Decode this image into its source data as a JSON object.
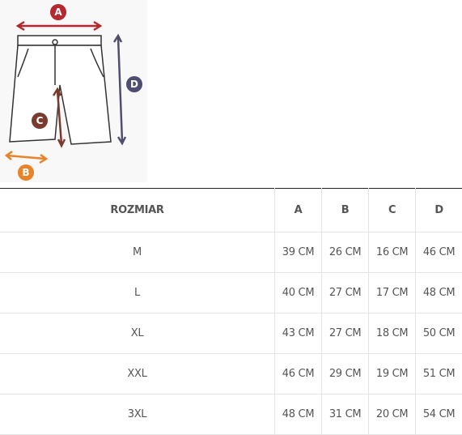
{
  "diagram": {
    "labels": {
      "a": "A",
      "b": "B",
      "c": "C",
      "d": "D"
    }
  },
  "table": {
    "header": [
      "ROZMIAR",
      "A",
      "B",
      "C",
      "D"
    ],
    "rows": [
      [
        "M",
        "39 CM",
        "26 CM",
        "16 CM",
        "46 CM"
      ],
      [
        "L",
        "40 CM",
        "27 CM",
        "17 CM",
        "48 CM"
      ],
      [
        "XL",
        "43 CM",
        "27 CM",
        "18 CM",
        "50 CM"
      ],
      [
        "XXL",
        "46 CM",
        "29 CM",
        "19 CM",
        "51 CM"
      ],
      [
        "3XL",
        "48 CM",
        "31 CM",
        "20 CM",
        "54 CM"
      ]
    ]
  }
}
